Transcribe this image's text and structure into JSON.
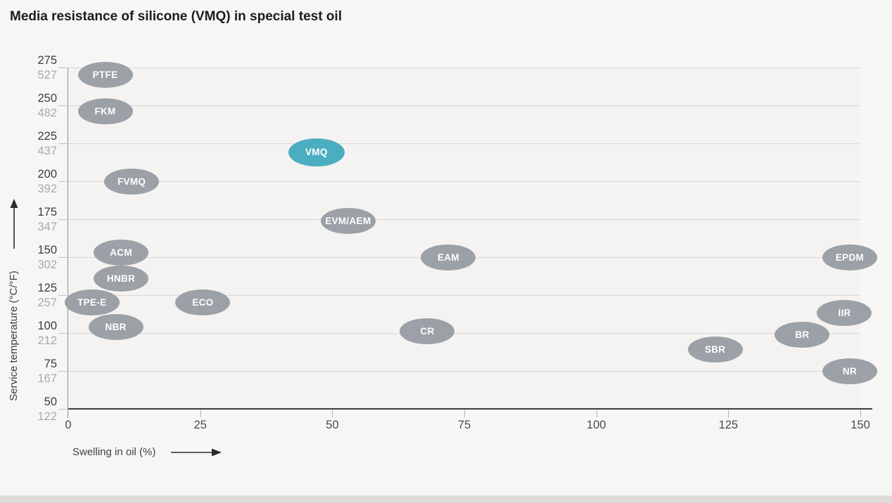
{
  "chart_data": {
    "type": "scatter",
    "title": "Media resistance of silicone (VMQ) in special test oil",
    "xlabel": "Swelling in oil (%)",
    "ylabel": "Service temperature (°C/°F)",
    "xlim": [
      0,
      150
    ],
    "ylim_c": [
      50,
      275
    ],
    "x_ticks": [
      0,
      25,
      50,
      75,
      100,
      125,
      150
    ],
    "y_ticks": [
      {
        "c": "275",
        "f": "527"
      },
      {
        "c": "250",
        "f": "482"
      },
      {
        "c": "225",
        "f": "437"
      },
      {
        "c": "200",
        "f": "392"
      },
      {
        "c": "175",
        "f": "347"
      },
      {
        "c": "150",
        "f": "302"
      },
      {
        "c": "125",
        "f": "257"
      },
      {
        "c": "100",
        "f": "212"
      },
      {
        "c": "75",
        "f": "167"
      },
      {
        "c": "50",
        "f": "122"
      }
    ],
    "grid": "horizontal",
    "legend": "none",
    "points": [
      {
        "label": "PTFE",
        "x": 7,
        "temp_c": 270,
        "highlight": false
      },
      {
        "label": "FKM",
        "x": 7,
        "temp_c": 246,
        "highlight": false
      },
      {
        "label": "VMQ",
        "x": 47,
        "temp_c": 219,
        "highlight": true
      },
      {
        "label": "FVMQ",
        "x": 12,
        "temp_c": 200,
        "highlight": false
      },
      {
        "label": "EVM/AEM",
        "x": 53,
        "temp_c": 174,
        "highlight": false
      },
      {
        "label": "ACM",
        "x": 10,
        "temp_c": 153,
        "highlight": false
      },
      {
        "label": "EAM",
        "x": 72,
        "temp_c": 150,
        "highlight": false
      },
      {
        "label": "EPDM",
        "x": 148,
        "temp_c": 150,
        "highlight": false
      },
      {
        "label": "HNBR",
        "x": 10,
        "temp_c": 136,
        "highlight": false
      },
      {
        "label": "TPE-E",
        "x": 4.5,
        "temp_c": 120,
        "highlight": false
      },
      {
        "label": "ECO",
        "x": 25.5,
        "temp_c": 120,
        "highlight": false
      },
      {
        "label": "IIR",
        "x": 147,
        "temp_c": 113,
        "highlight": false
      },
      {
        "label": "NBR",
        "x": 9,
        "temp_c": 104,
        "highlight": false
      },
      {
        "label": "CR",
        "x": 68,
        "temp_c": 101,
        "highlight": false
      },
      {
        "label": "BR",
        "x": 139,
        "temp_c": 99,
        "highlight": false
      },
      {
        "label": "SBR",
        "x": 122.5,
        "temp_c": 89,
        "highlight": false
      },
      {
        "label": "NR",
        "x": 148,
        "temp_c": 75,
        "highlight": false
      }
    ],
    "colors": {
      "bubble": "#9ba1a6",
      "bubble_highlight": "#4badc0",
      "bubble_text": "#ffffff",
      "gridline": "#d9d7d4",
      "axis_left": "#8f8f8f",
      "axis_bottom": "#3c3c3c",
      "tick_label_c": "#3d3d3d",
      "tick_label_f": "#a9a9a9",
      "x_tick_label": "#4a4a4a",
      "axis_title": "#3f3f3f",
      "title": "#1d1d1b",
      "background": "#f8f6f4",
      "plot_background": "#f5f3f1",
      "bottom_bar": "#dcdbda"
    }
  }
}
